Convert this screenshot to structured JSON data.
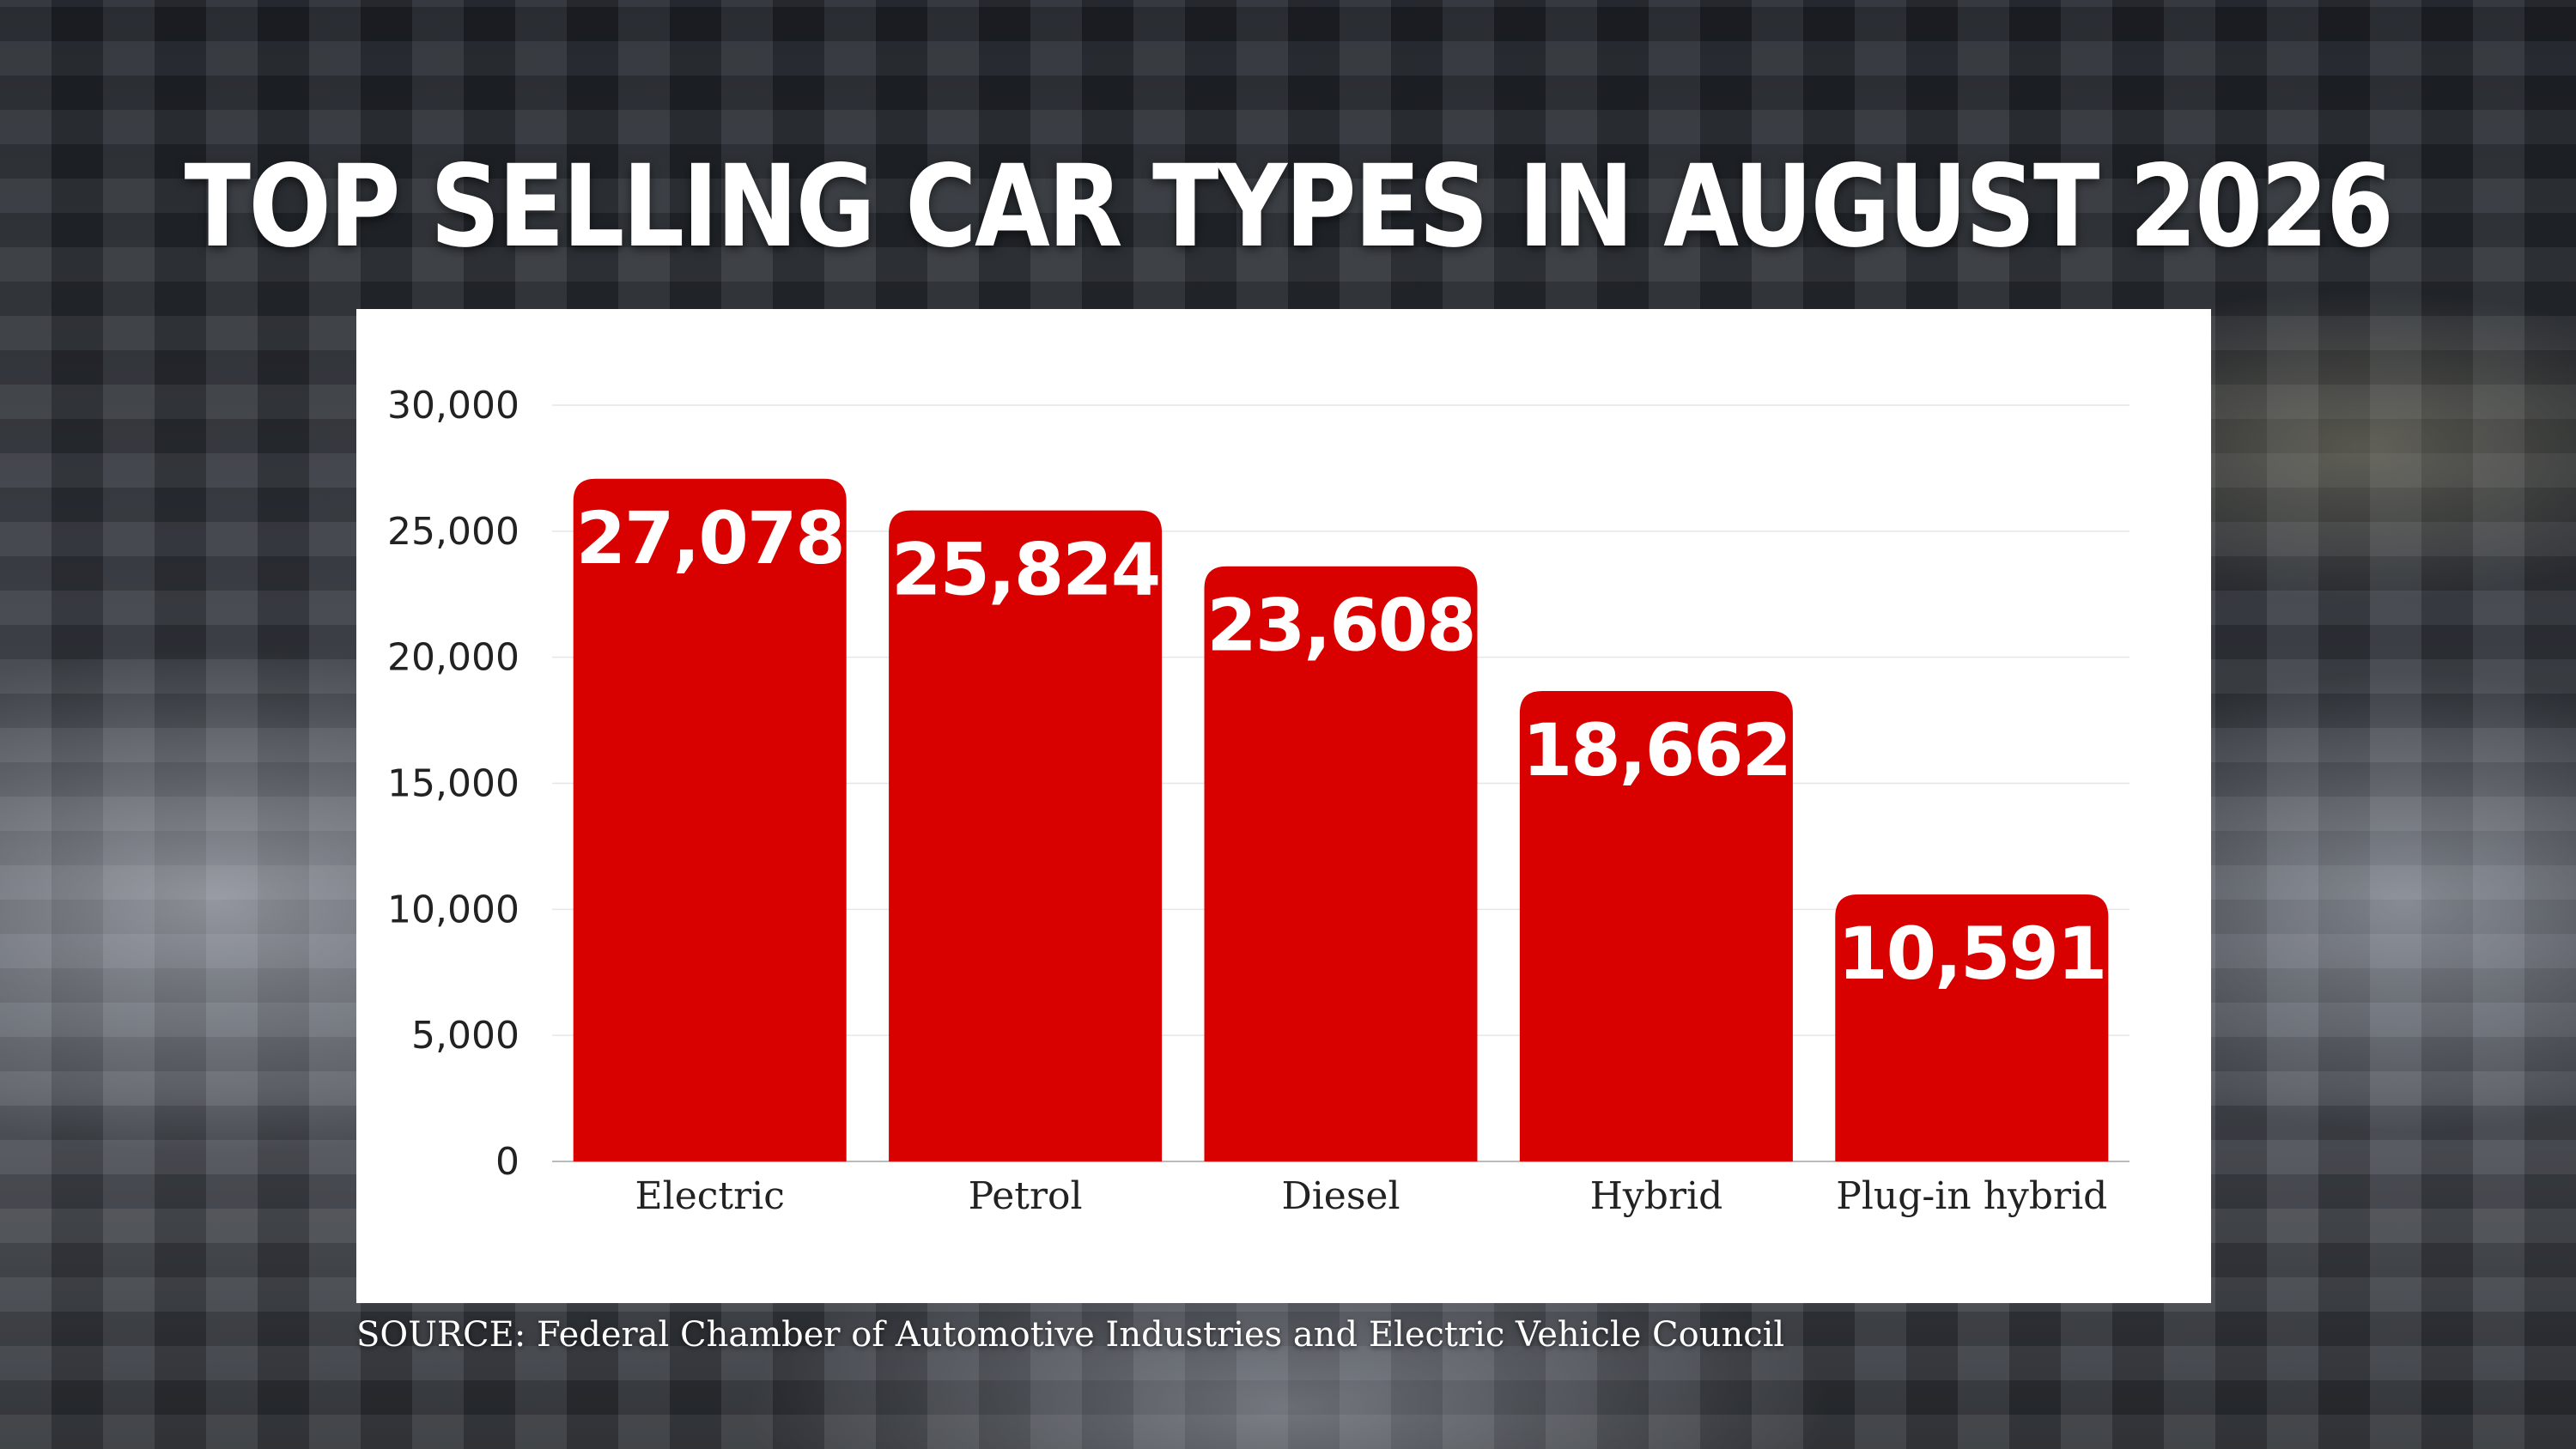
{
  "chart_data": {
    "type": "bar",
    "title": "TOP SELLING CAR TYPES IN AUGUST 2026",
    "categories": [
      "Electric",
      "Petrol",
      "Diesel",
      "Hybrid",
      "Plug-in hybrid"
    ],
    "values": [
      27078,
      25824,
      23608,
      18662,
      10591
    ],
    "data_labels": [
      "27,078",
      "25,824",
      "23,608",
      "18,662",
      "10,591"
    ],
    "ylim": [
      0,
      30000
    ],
    "yticks": [
      0,
      5000,
      10000,
      15000,
      20000,
      25000,
      30000
    ],
    "ytick_labels": [
      "0",
      "5,000",
      "10,000",
      "15,000",
      "20,000",
      "25,000",
      "30,000"
    ],
    "xlabel": "",
    "ylabel": "",
    "grid": true,
    "bar_color": "#d90000"
  },
  "source": "SOURCE: Federal Chamber of Automotive Industries and Electric Vehicle Council"
}
